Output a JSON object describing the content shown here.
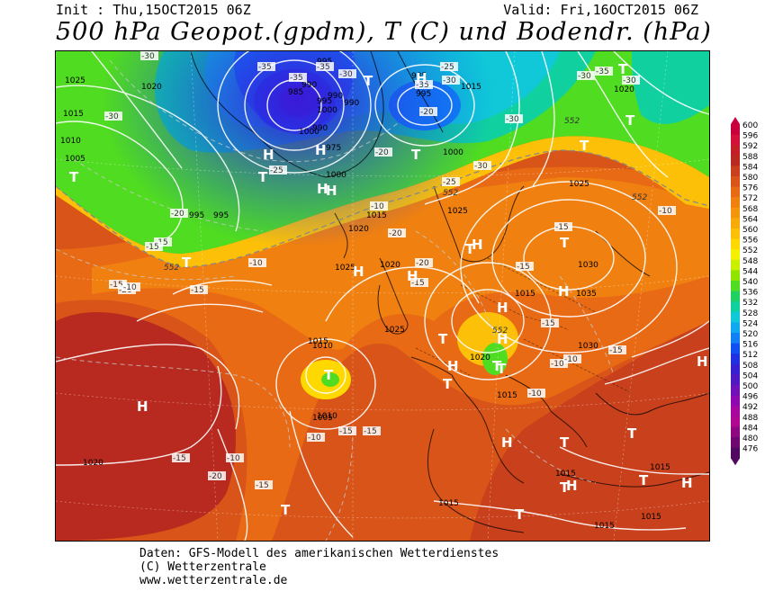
{
  "header": {
    "init": "Init : Thu,15OCT2015 06Z",
    "valid": "Valid: Fri,16OCT2015 06Z",
    "title": "500 hPa Geopot.(gpdm), T (C) und Bodendr. (hPa)"
  },
  "footer": {
    "line1": "Daten: GFS-Modell des amerikanischen Wetterdienstes",
    "line2": "(C) Wetterzentrale",
    "line3": "www.wetterzentrale.de"
  },
  "colorbar": {
    "levels": [
      "600",
      "596",
      "592",
      "588",
      "584",
      "580",
      "576",
      "572",
      "568",
      "564",
      "560",
      "556",
      "552",
      "548",
      "544",
      "540",
      "536",
      "532",
      "528",
      "524",
      "520",
      "516",
      "512",
      "508",
      "504",
      "500",
      "496",
      "492",
      "488",
      "484",
      "480",
      "476"
    ],
    "colors": [
      "#c8003c",
      "#d3103a",
      "#c41e28",
      "#b82a20",
      "#c8401c",
      "#d85418",
      "#e86a14",
      "#f08010",
      "#f4960c",
      "#f8aa0a",
      "#fcc008",
      "#ffd800",
      "#f4f000",
      "#c8f000",
      "#90e400",
      "#50dc20",
      "#20d060",
      "#10d0a0",
      "#10c8d8",
      "#10a8f0",
      "#1080f4",
      "#1050f0",
      "#2030e0",
      "#3820d0",
      "#5018c0",
      "#7010b8",
      "#9008b0",
      "#a808a0",
      "#b00890",
      "#900880",
      "#700870",
      "#500860"
    ]
  },
  "map": {
    "pressure_labels": [
      "995",
      "990",
      "985",
      "990",
      "995",
      "990",
      "1000",
      "1000",
      "990",
      "985",
      "995",
      "975",
      "1000",
      "995",
      "1000",
      "1025",
      "1020",
      "1015",
      "1010",
      "1005",
      "995",
      "1015",
      "1020",
      "1015",
      "1020",
      "1025",
      "1025",
      "1030",
      "1035",
      "1030",
      "1025",
      "1020",
      "1015",
      "1010",
      "1005",
      "1020",
      "1015",
      "1025",
      "1015",
      "1015",
      "1015",
      "1015",
      "1015",
      "1015",
      "1020",
      "1010",
      "552",
      "552",
      "552",
      "552",
      "552"
    ],
    "temp_labels": [
      "-30",
      "-30",
      "-35",
      "-35",
      "-35",
      "-30",
      "-35",
      "-30",
      "-25",
      "-30",
      "-35",
      "-30",
      "-30",
      "-25",
      "-30",
      "-20",
      "-20",
      "-25",
      "-20",
      "-15",
      "-15",
      "-15",
      "-20",
      "-15",
      "-10",
      "-10",
      "-20",
      "-15",
      "-15",
      "-20",
      "-15",
      "-10",
      "-15",
      "-15",
      "-15",
      "-15",
      "-15",
      "-10",
      "-10",
      "-10",
      "-15",
      "-10",
      "-10",
      "-20",
      "-10"
    ],
    "symbols": [
      "T",
      "T",
      "T",
      "T",
      "T",
      "H",
      "H",
      "H",
      "T",
      "T",
      "H",
      "H",
      "T",
      "H",
      "H",
      "T",
      "T",
      "T",
      "T",
      "H",
      "H",
      "T",
      "H",
      "T",
      "H",
      "H",
      "T",
      "T",
      "H",
      "H",
      "T",
      "T",
      "T",
      "H",
      "H",
      "T",
      "T",
      "H"
    ]
  }
}
